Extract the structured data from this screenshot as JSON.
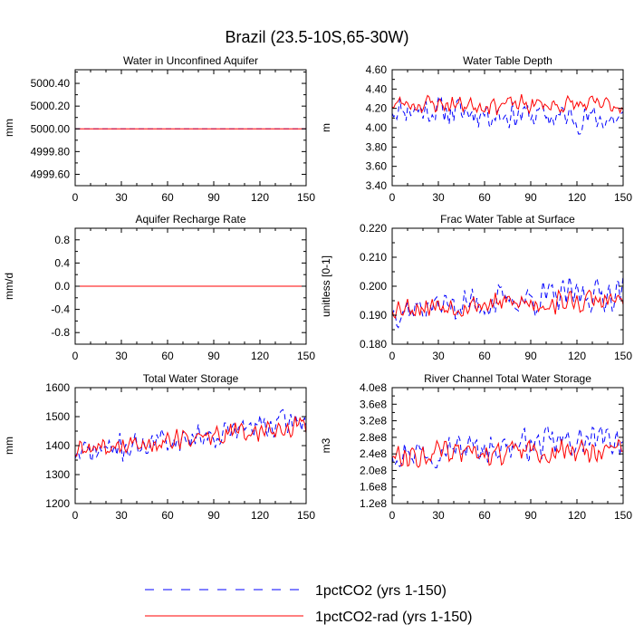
{
  "figure": {
    "title": "Brazil (23.5-10S,65-30W)"
  },
  "legend": [
    {
      "label": "1pctCO2 (yrs 1-150)",
      "color": "#0000ff",
      "dash": "dashed"
    },
    {
      "label": "1pctCO2-rad (yrs 1-150)",
      "color": "#ff0000",
      "dash": "solid"
    }
  ],
  "chart_data": [
    {
      "id": "aquifer-water",
      "type": "line",
      "title": "Water in Unconfined Aquifer",
      "xlabel": "",
      "ylabel": "mm",
      "xlim": [
        0,
        150
      ],
      "ylim": [
        4999.5,
        5000.52
      ],
      "xticks": [
        "0",
        "30",
        "60",
        "90",
        "120",
        "150"
      ],
      "yticks": [
        {
          "v": 4999.6,
          "label": "4999.60"
        },
        {
          "v": 4999.8,
          "label": "4999.80"
        },
        {
          "v": 5000.0,
          "label": "5000.00"
        },
        {
          "v": 5000.2,
          "label": "5000.20"
        },
        {
          "v": 5000.4,
          "label": "5000.40"
        }
      ],
      "series": [
        {
          "name": "1pctCO2 (yrs 1-150)",
          "kind": "constant",
          "value": 5000.0
        },
        {
          "name": "1pctCO2-rad (yrs 1-150)",
          "kind": "constant",
          "value": 5000.0
        }
      ]
    },
    {
      "id": "water-table-depth",
      "type": "line",
      "title": "Water Table Depth",
      "xlabel": "",
      "ylabel": "m",
      "xlim": [
        0,
        150
      ],
      "ylim": [
        3.4,
        4.6
      ],
      "xticks": [
        "0",
        "30",
        "60",
        "90",
        "120",
        "150"
      ],
      "yticks": [
        {
          "v": 3.4,
          "label": "3.40"
        },
        {
          "v": 3.6,
          "label": "3.60"
        },
        {
          "v": 3.8,
          "label": "3.80"
        },
        {
          "v": 4.0,
          "label": "4.00"
        },
        {
          "v": 4.2,
          "label": "4.20"
        },
        {
          "v": 4.4,
          "label": "4.40"
        },
        {
          "v": 4.6,
          "label": "4.60"
        }
      ],
      "series": [
        {
          "name": "1pctCO2 (yrs 1-150)",
          "kind": "noisy",
          "base": 4.2,
          "trend": -0.12,
          "amp": 0.18,
          "seed": 11,
          "min": 3.6,
          "max": 4.5
        },
        {
          "name": "1pctCO2-rad (yrs 1-150)",
          "kind": "noisy",
          "base": 4.25,
          "trend": -0.02,
          "amp": 0.12,
          "seed": 23,
          "min": 3.85,
          "max": 4.5
        }
      ]
    },
    {
      "id": "recharge-rate",
      "type": "line",
      "title": "Aquifer Recharge Rate",
      "xlabel": "",
      "ylabel": "mm/d",
      "xlim": [
        0,
        150
      ],
      "ylim": [
        -1.0,
        1.0
      ],
      "xticks": [
        "0",
        "30",
        "60",
        "90",
        "120",
        "150"
      ],
      "yticks": [
        {
          "v": -0.8,
          "label": "-0.8"
        },
        {
          "v": -0.4,
          "label": "-0.4"
        },
        {
          "v": 0.0,
          "label": "0.0"
        },
        {
          "v": 0.4,
          "label": "0.4"
        },
        {
          "v": 0.8,
          "label": "0.8"
        }
      ],
      "series": [
        {
          "name": "1pctCO2 (yrs 1-150)",
          "kind": "constant",
          "value": 0.0
        },
        {
          "name": "1pctCO2-rad (yrs 1-150)",
          "kind": "constant",
          "value": 0.0
        }
      ]
    },
    {
      "id": "frac-water-table",
      "type": "line",
      "title": "Frac Water Table at Surface",
      "xlabel": "",
      "ylabel": "unitless [0-1]",
      "xlim": [
        0,
        150
      ],
      "ylim": [
        0.18,
        0.22
      ],
      "xticks": [
        "0",
        "30",
        "60",
        "90",
        "120",
        "150"
      ],
      "yticks": [
        {
          "v": 0.18,
          "label": "0.180"
        },
        {
          "v": 0.19,
          "label": "0.190"
        },
        {
          "v": 0.2,
          "label": "0.200"
        },
        {
          "v": 0.21,
          "label": "0.210"
        },
        {
          "v": 0.22,
          "label": "0.220"
        }
      ],
      "series": [
        {
          "name": "1pctCO2 (yrs 1-150)",
          "kind": "noisy",
          "base": 0.192,
          "trend": 0.006,
          "amp": 0.007,
          "seed": 37,
          "min": 0.182,
          "max": 0.219
        },
        {
          "name": "1pctCO2-rad (yrs 1-150)",
          "kind": "noisy",
          "base": 0.193,
          "trend": 0.002,
          "amp": 0.005,
          "seed": 53,
          "min": 0.181,
          "max": 0.207
        }
      ]
    },
    {
      "id": "total-water-storage",
      "type": "line",
      "title": "Total Water Storage",
      "xlabel": "",
      "ylabel": "mm",
      "xlim": [
        0,
        150
      ],
      "ylim": [
        1200,
        1600
      ],
      "xticks": [
        "0",
        "30",
        "60",
        "90",
        "120",
        "150"
      ],
      "yticks": [
        {
          "v": 1200,
          "label": "1200"
        },
        {
          "v": 1300,
          "label": "1300"
        },
        {
          "v": 1400,
          "label": "1400"
        },
        {
          "v": 1500,
          "label": "1500"
        },
        {
          "v": 1600,
          "label": "1600"
        }
      ],
      "series": [
        {
          "name": "1pctCO2 (yrs 1-150)",
          "kind": "noisy",
          "base": 1370,
          "trend": 120,
          "amp": 55,
          "seed": 71,
          "min": 1250,
          "max": 1570
        },
        {
          "name": "1pctCO2-rad (yrs 1-150)",
          "kind": "noisy",
          "base": 1380,
          "trend": 90,
          "amp": 45,
          "seed": 89,
          "min": 1265,
          "max": 1545
        }
      ]
    },
    {
      "id": "river-channel-storage",
      "type": "line",
      "title": "River Channel Total Water Storage",
      "xlabel": "",
      "ylabel": "m3",
      "xlim": [
        0,
        150
      ],
      "ylim": [
        120000000.0,
        400000000.0
      ],
      "xticks": [
        "0",
        "30",
        "60",
        "90",
        "120",
        "150"
      ],
      "yticks": [
        {
          "v": 120000000.0,
          "label": "1.2e8"
        },
        {
          "v": 160000000.0,
          "label": "1.6e8"
        },
        {
          "v": 200000000.0,
          "label": "2.0e8"
        },
        {
          "v": 240000000.0,
          "label": "2.4e8"
        },
        {
          "v": 280000000.0,
          "label": "2.8e8"
        },
        {
          "v": 320000000.0,
          "label": "3.2e8"
        },
        {
          "v": 360000000.0,
          "label": "3.6e8"
        },
        {
          "v": 400000000.0,
          "label": "4.0e8"
        }
      ],
      "series": [
        {
          "name": "1pctCO2 (yrs 1-150)",
          "kind": "noisy",
          "base": 245000000.0,
          "trend": 30000000.0,
          "amp": 45000000.0,
          "seed": 97,
          "min": 160000000.0,
          "max": 365000000.0
        },
        {
          "name": "1pctCO2-rad (yrs 1-150)",
          "kind": "noisy",
          "base": 240000000.0,
          "trend": 10000000.0,
          "amp": 35000000.0,
          "seed": 113,
          "min": 155000000.0,
          "max": 330000000.0
        }
      ]
    }
  ]
}
